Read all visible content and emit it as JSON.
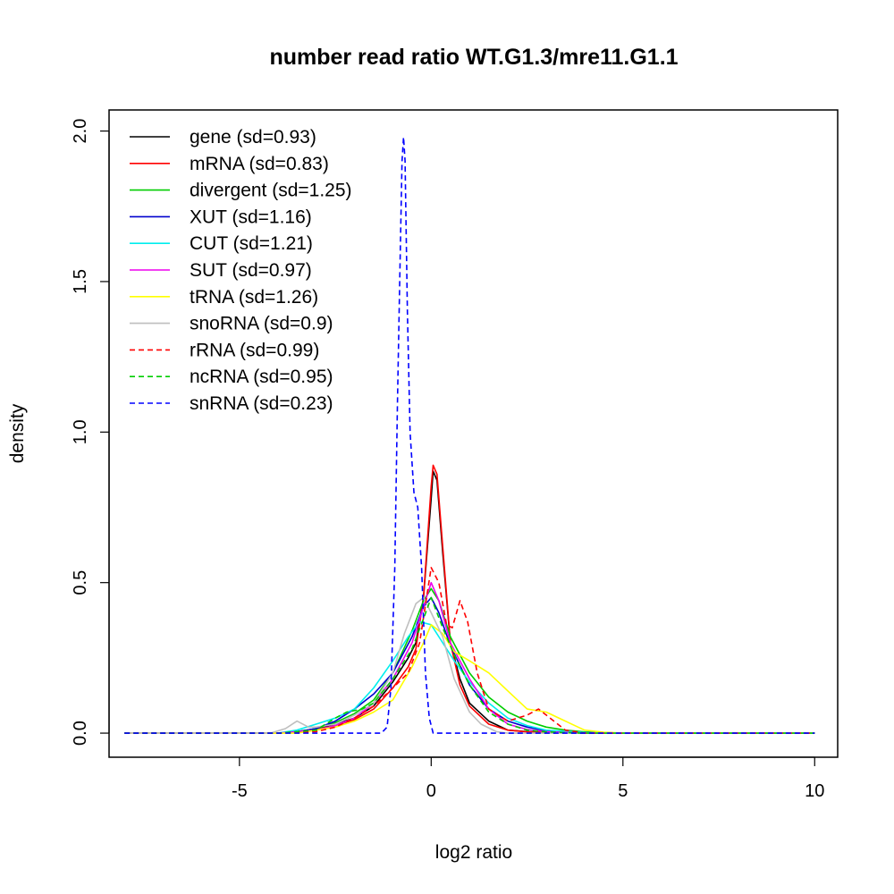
{
  "chart_data": {
    "type": "line",
    "title": "number read ratio WT.G1.3/mre11.G1.1",
    "xlabel": "log2 ratio",
    "ylabel": "density",
    "xlim": [
      -8.4,
      10.6
    ],
    "ylim": [
      -0.08,
      2.07
    ],
    "xticks": [
      -5,
      0,
      5,
      10
    ],
    "xtick_labels": [
      "-5",
      "0",
      "5",
      "10"
    ],
    "yticks": [
      0.0,
      0.5,
      1.0,
      1.5,
      2.0
    ],
    "ytick_labels": [
      "0.0",
      "0.5",
      "1.0",
      "1.5",
      "2.0"
    ],
    "legend_position": "top-left",
    "series": [
      {
        "name": "gene (sd=0.93)",
        "color": "#000000",
        "dash": false,
        "points": [
          [
            -8,
            0
          ],
          [
            -4,
            0
          ],
          [
            -3.5,
            0.005
          ],
          [
            -3,
            0.015
          ],
          [
            -2.5,
            0.03
          ],
          [
            -2,
            0.05
          ],
          [
            -1.5,
            0.09
          ],
          [
            -1,
            0.17
          ],
          [
            -0.6,
            0.25
          ],
          [
            -0.4,
            0.3
          ],
          [
            -0.2,
            0.45
          ],
          [
            0,
            0.78
          ],
          [
            0.05,
            0.87
          ],
          [
            0.15,
            0.84
          ],
          [
            0.3,
            0.6
          ],
          [
            0.5,
            0.3
          ],
          [
            0.75,
            0.18
          ],
          [
            1,
            0.1
          ],
          [
            1.5,
            0.04
          ],
          [
            2,
            0.01
          ],
          [
            2.5,
            0.005
          ],
          [
            3,
            0.003
          ],
          [
            4,
            0
          ],
          [
            10,
            0
          ]
        ]
      },
      {
        "name": "mRNA (sd=0.83)",
        "color": "#ff0000",
        "dash": false,
        "points": [
          [
            -8,
            0
          ],
          [
            -4,
            0
          ],
          [
            -3.5,
            0.004
          ],
          [
            -3,
            0.012
          ],
          [
            -2.5,
            0.025
          ],
          [
            -2,
            0.045
          ],
          [
            -1.5,
            0.08
          ],
          [
            -1,
            0.15
          ],
          [
            -0.6,
            0.22
          ],
          [
            -0.4,
            0.28
          ],
          [
            -0.2,
            0.45
          ],
          [
            0,
            0.82
          ],
          [
            0.05,
            0.89
          ],
          [
            0.15,
            0.86
          ],
          [
            0.3,
            0.62
          ],
          [
            0.5,
            0.3
          ],
          [
            0.75,
            0.16
          ],
          [
            1,
            0.09
          ],
          [
            1.5,
            0.03
          ],
          [
            2,
            0.01
          ],
          [
            2.5,
            0.004
          ],
          [
            4,
            0
          ],
          [
            10,
            0
          ]
        ]
      },
      {
        "name": "divergent (sd=1.25)",
        "color": "#00cd00",
        "dash": false,
        "points": [
          [
            -8,
            0
          ],
          [
            -4,
            0
          ],
          [
            -3.5,
            0.005
          ],
          [
            -3,
            0.015
          ],
          [
            -2.5,
            0.035
          ],
          [
            -2,
            0.065
          ],
          [
            -1.5,
            0.11
          ],
          [
            -1,
            0.2
          ],
          [
            -0.5,
            0.34
          ],
          [
            -0.2,
            0.44
          ],
          [
            0,
            0.48
          ],
          [
            0.2,
            0.44
          ],
          [
            0.5,
            0.32
          ],
          [
            1,
            0.2
          ],
          [
            1.5,
            0.12
          ],
          [
            2,
            0.07
          ],
          [
            2.5,
            0.04
          ],
          [
            3,
            0.02
          ],
          [
            3.5,
            0.01
          ],
          [
            4,
            0.004
          ],
          [
            5,
            0
          ],
          [
            10,
            0
          ]
        ]
      },
      {
        "name": "XUT (sd=1.16)",
        "color": "#0000cd",
        "dash": false,
        "points": [
          [
            -8,
            0
          ],
          [
            -4,
            0
          ],
          [
            -3.5,
            0.005
          ],
          [
            -3,
            0.015
          ],
          [
            -2.5,
            0.04
          ],
          [
            -2,
            0.08
          ],
          [
            -1.5,
            0.13
          ],
          [
            -1,
            0.2
          ],
          [
            -0.5,
            0.32
          ],
          [
            -0.2,
            0.42
          ],
          [
            0,
            0.45
          ],
          [
            0.2,
            0.4
          ],
          [
            0.5,
            0.29
          ],
          [
            1,
            0.16
          ],
          [
            1.5,
            0.08
          ],
          [
            2,
            0.04
          ],
          [
            2.5,
            0.02
          ],
          [
            3,
            0.008
          ],
          [
            4,
            0.002
          ],
          [
            5,
            0
          ],
          [
            10,
            0
          ]
        ]
      },
      {
        "name": "CUT (sd=1.21)",
        "color": "#00eeee",
        "dash": false,
        "points": [
          [
            -8,
            0
          ],
          [
            -4,
            0
          ],
          [
            -3.5,
            0.01
          ],
          [
            -3,
            0.03
          ],
          [
            -2.5,
            0.05
          ],
          [
            -2,
            0.08
          ],
          [
            -1.5,
            0.15
          ],
          [
            -1,
            0.24
          ],
          [
            -0.6,
            0.32
          ],
          [
            -0.3,
            0.37
          ],
          [
            0,
            0.36
          ],
          [
            0.3,
            0.3
          ],
          [
            0.6,
            0.24
          ],
          [
            1,
            0.17
          ],
          [
            1.5,
            0.1
          ],
          [
            2,
            0.05
          ],
          [
            2.5,
            0.025
          ],
          [
            3,
            0.01
          ],
          [
            4,
            0.002
          ],
          [
            5,
            0
          ],
          [
            10,
            0
          ]
        ]
      },
      {
        "name": "SUT (sd=0.97)",
        "color": "#ee00ee",
        "dash": false,
        "points": [
          [
            -8,
            0
          ],
          [
            -4,
            0
          ],
          [
            -3.5,
            0.005
          ],
          [
            -3,
            0.01
          ],
          [
            -2.5,
            0.025
          ],
          [
            -2,
            0.05
          ],
          [
            -1.5,
            0.1
          ],
          [
            -1,
            0.18
          ],
          [
            -0.5,
            0.3
          ],
          [
            -0.2,
            0.42
          ],
          [
            0,
            0.5
          ],
          [
            0.2,
            0.44
          ],
          [
            0.5,
            0.3
          ],
          [
            1,
            0.18
          ],
          [
            1.5,
            0.08
          ],
          [
            2,
            0.03
          ],
          [
            2.5,
            0.012
          ],
          [
            3,
            0.005
          ],
          [
            4,
            0
          ],
          [
            10,
            0
          ]
        ]
      },
      {
        "name": "tRNA (sd=1.26)",
        "color": "#ffff00",
        "dash": false,
        "points": [
          [
            -8,
            0
          ],
          [
            -3.5,
            0
          ],
          [
            -3,
            0.01
          ],
          [
            -2.5,
            0.02
          ],
          [
            -2,
            0.04
          ],
          [
            -1.5,
            0.07
          ],
          [
            -1,
            0.11
          ],
          [
            -0.5,
            0.22
          ],
          [
            -0.2,
            0.3
          ],
          [
            0,
            0.36
          ],
          [
            0.3,
            0.33
          ],
          [
            0.6,
            0.27
          ],
          [
            1,
            0.24
          ],
          [
            1.5,
            0.2
          ],
          [
            2,
            0.14
          ],
          [
            2.5,
            0.08
          ],
          [
            3,
            0.07
          ],
          [
            3.5,
            0.04
          ],
          [
            4,
            0.01
          ],
          [
            4.5,
            0.003
          ],
          [
            5,
            0
          ],
          [
            10,
            0
          ]
        ]
      },
      {
        "name": "snoRNA (sd=0.9)",
        "color": "#bebebe",
        "dash": false,
        "points": [
          [
            -8,
            0
          ],
          [
            -4.2,
            0
          ],
          [
            -3.8,
            0.015
          ],
          [
            -3.5,
            0.04
          ],
          [
            -3.2,
            0.02
          ],
          [
            -3,
            0.02
          ],
          [
            -2.5,
            0.03
          ],
          [
            -2,
            0.06
          ],
          [
            -1.5,
            0.1
          ],
          [
            -1,
            0.2
          ],
          [
            -0.7,
            0.33
          ],
          [
            -0.4,
            0.43
          ],
          [
            -0.2,
            0.45
          ],
          [
            0,
            0.4
          ],
          [
            0.3,
            0.32
          ],
          [
            0.6,
            0.18
          ],
          [
            1,
            0.07
          ],
          [
            1.3,
            0.03
          ],
          [
            1.7,
            0.005
          ],
          [
            2,
            0
          ],
          [
            10,
            0
          ]
        ]
      },
      {
        "name": "rRNA (sd=0.99)",
        "color": "#ff0000",
        "dash": true,
        "points": [
          [
            -8,
            0
          ],
          [
            -4,
            0
          ],
          [
            -3,
            0.005
          ],
          [
            -2.5,
            0.02
          ],
          [
            -2,
            0.05
          ],
          [
            -1.5,
            0.09
          ],
          [
            -1,
            0.15
          ],
          [
            -0.6,
            0.2
          ],
          [
            -0.3,
            0.3
          ],
          [
            0,
            0.55
          ],
          [
            0.2,
            0.5
          ],
          [
            0.4,
            0.36
          ],
          [
            0.55,
            0.35
          ],
          [
            0.75,
            0.44
          ],
          [
            0.95,
            0.37
          ],
          [
            1.2,
            0.2
          ],
          [
            1.5,
            0.08
          ],
          [
            2,
            0.04
          ],
          [
            2.5,
            0.06
          ],
          [
            2.8,
            0.08
          ],
          [
            3.1,
            0.05
          ],
          [
            3.5,
            0.01
          ],
          [
            4,
            0
          ],
          [
            10,
            0
          ]
        ]
      },
      {
        "name": "ncRNA (sd=0.95)",
        "color": "#00cd00",
        "dash": true,
        "points": [
          [
            -8,
            0
          ],
          [
            -4,
            0
          ],
          [
            -3,
            0.01
          ],
          [
            -2.5,
            0.05
          ],
          [
            -2.2,
            0.07
          ],
          [
            -1.8,
            0.08
          ],
          [
            -1.5,
            0.1
          ],
          [
            -1,
            0.18
          ],
          [
            -0.5,
            0.28
          ],
          [
            -0.2,
            0.38
          ],
          [
            0,
            0.45
          ],
          [
            0.3,
            0.35
          ],
          [
            0.6,
            0.26
          ],
          [
            1,
            0.16
          ],
          [
            1.5,
            0.07
          ],
          [
            2,
            0.03
          ],
          [
            2.5,
            0.01
          ],
          [
            3,
            0.004
          ],
          [
            4,
            0
          ],
          [
            10,
            0
          ]
        ]
      },
      {
        "name": "snRNA (sd=0.23)",
        "color": "#0000ff",
        "dash": true,
        "points": [
          [
            -8,
            0
          ],
          [
            -1.3,
            0
          ],
          [
            -1.15,
            0.02
          ],
          [
            -1.05,
            0.15
          ],
          [
            -0.95,
            0.55
          ],
          [
            -0.88,
            1.1
          ],
          [
            -0.82,
            1.5
          ],
          [
            -0.76,
            1.9
          ],
          [
            -0.72,
            1.98
          ],
          [
            -0.68,
            1.9
          ],
          [
            -0.62,
            1.4
          ],
          [
            -0.55,
            1.0
          ],
          [
            -0.45,
            0.8
          ],
          [
            -0.35,
            0.75
          ],
          [
            -0.25,
            0.55
          ],
          [
            -0.15,
            0.2
          ],
          [
            -0.05,
            0.05
          ],
          [
            0.05,
            0
          ],
          [
            10,
            0
          ]
        ]
      }
    ]
  }
}
